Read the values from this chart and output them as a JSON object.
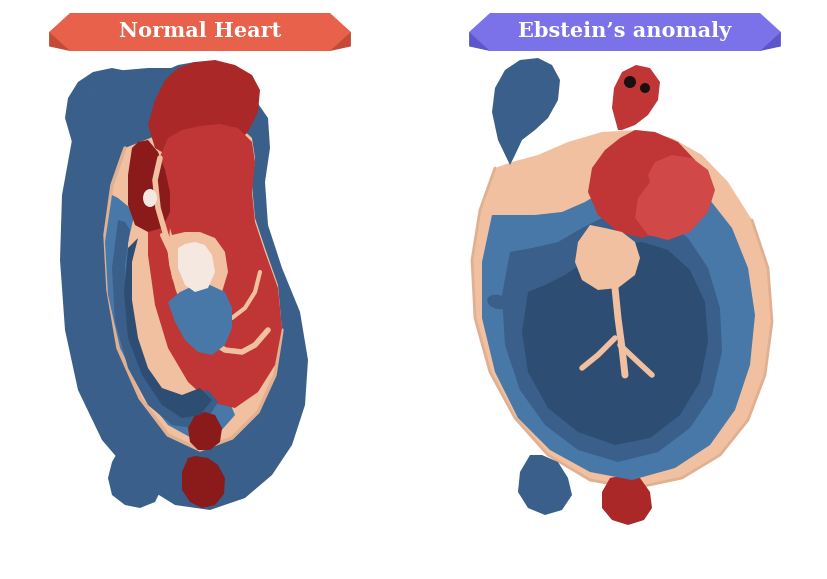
{
  "bg_color": "#ffffff",
  "title_left": "Normal Heart",
  "title_right": "Ebstein’s anomaly",
  "banner_left_color": "#e8614a",
  "banner_right_color": "#7b72e9",
  "banner_shadow_left": "#c44a35",
  "banner_shadow_right": "#5e56c8",
  "banner_text_color": "#ffffff",
  "skin_color": "#f0c0a0",
  "blue_dark": "#3a5f8a",
  "blue_darker": "#2d4e72",
  "blue_mid": "#4878a8",
  "blue_light": "#5a8cc0",
  "red_dark": "#8b1a1a",
  "red_mid": "#aa2828",
  "red_bright": "#c03535",
  "red_light": "#d04848",
  "white_ish": "#f5e8e0",
  "outline_color": "#e0b090"
}
